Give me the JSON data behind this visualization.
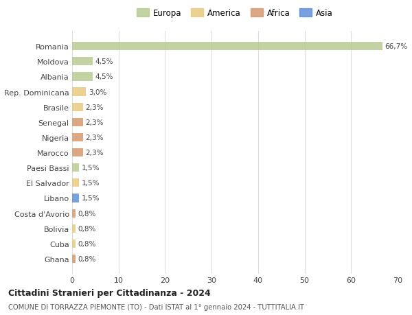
{
  "countries": [
    "Romania",
    "Moldova",
    "Albania",
    "Rep. Dominicana",
    "Brasile",
    "Senegal",
    "Nigeria",
    "Marocco",
    "Paesi Bassi",
    "El Salvador",
    "Libano",
    "Costa d'Avorio",
    "Bolivia",
    "Cuba",
    "Ghana"
  ],
  "values": [
    66.7,
    4.5,
    4.5,
    3.0,
    2.3,
    2.3,
    2.3,
    2.3,
    1.5,
    1.5,
    1.5,
    0.8,
    0.8,
    0.8,
    0.8
  ],
  "labels": [
    "66,7%",
    "4,5%",
    "4,5%",
    "3,0%",
    "2,3%",
    "2,3%",
    "2,3%",
    "2,3%",
    "1,5%",
    "1,5%",
    "1,5%",
    "0,8%",
    "0,8%",
    "0,8%",
    "0,8%"
  ],
  "colors": [
    "#b5c98e",
    "#b5c98e",
    "#b5c98e",
    "#e8c97a",
    "#e8c97a",
    "#d4956a",
    "#d4956a",
    "#d4956a",
    "#b5c98e",
    "#e8c97a",
    "#5b8dd9",
    "#d4956a",
    "#e8c97a",
    "#e8c97a",
    "#d4956a"
  ],
  "legend": {
    "Europa": "#b5c98e",
    "America": "#e8c97a",
    "Africa": "#d4956a",
    "Asia": "#5b8dd9"
  },
  "title": "Cittadini Stranieri per Cittadinanza - 2024",
  "subtitle": "COMUNE DI TORRAZZA PIEMONTE (TO) - Dati ISTAT al 1° gennaio 2024 - TUTTITALIA.IT",
  "xlim": [
    0,
    70
  ],
  "xticks": [
    0,
    10,
    20,
    30,
    40,
    50,
    60,
    70
  ],
  "bg_color": "#ffffff",
  "grid_color": "#dddddd",
  "bar_alpha": 0.82
}
